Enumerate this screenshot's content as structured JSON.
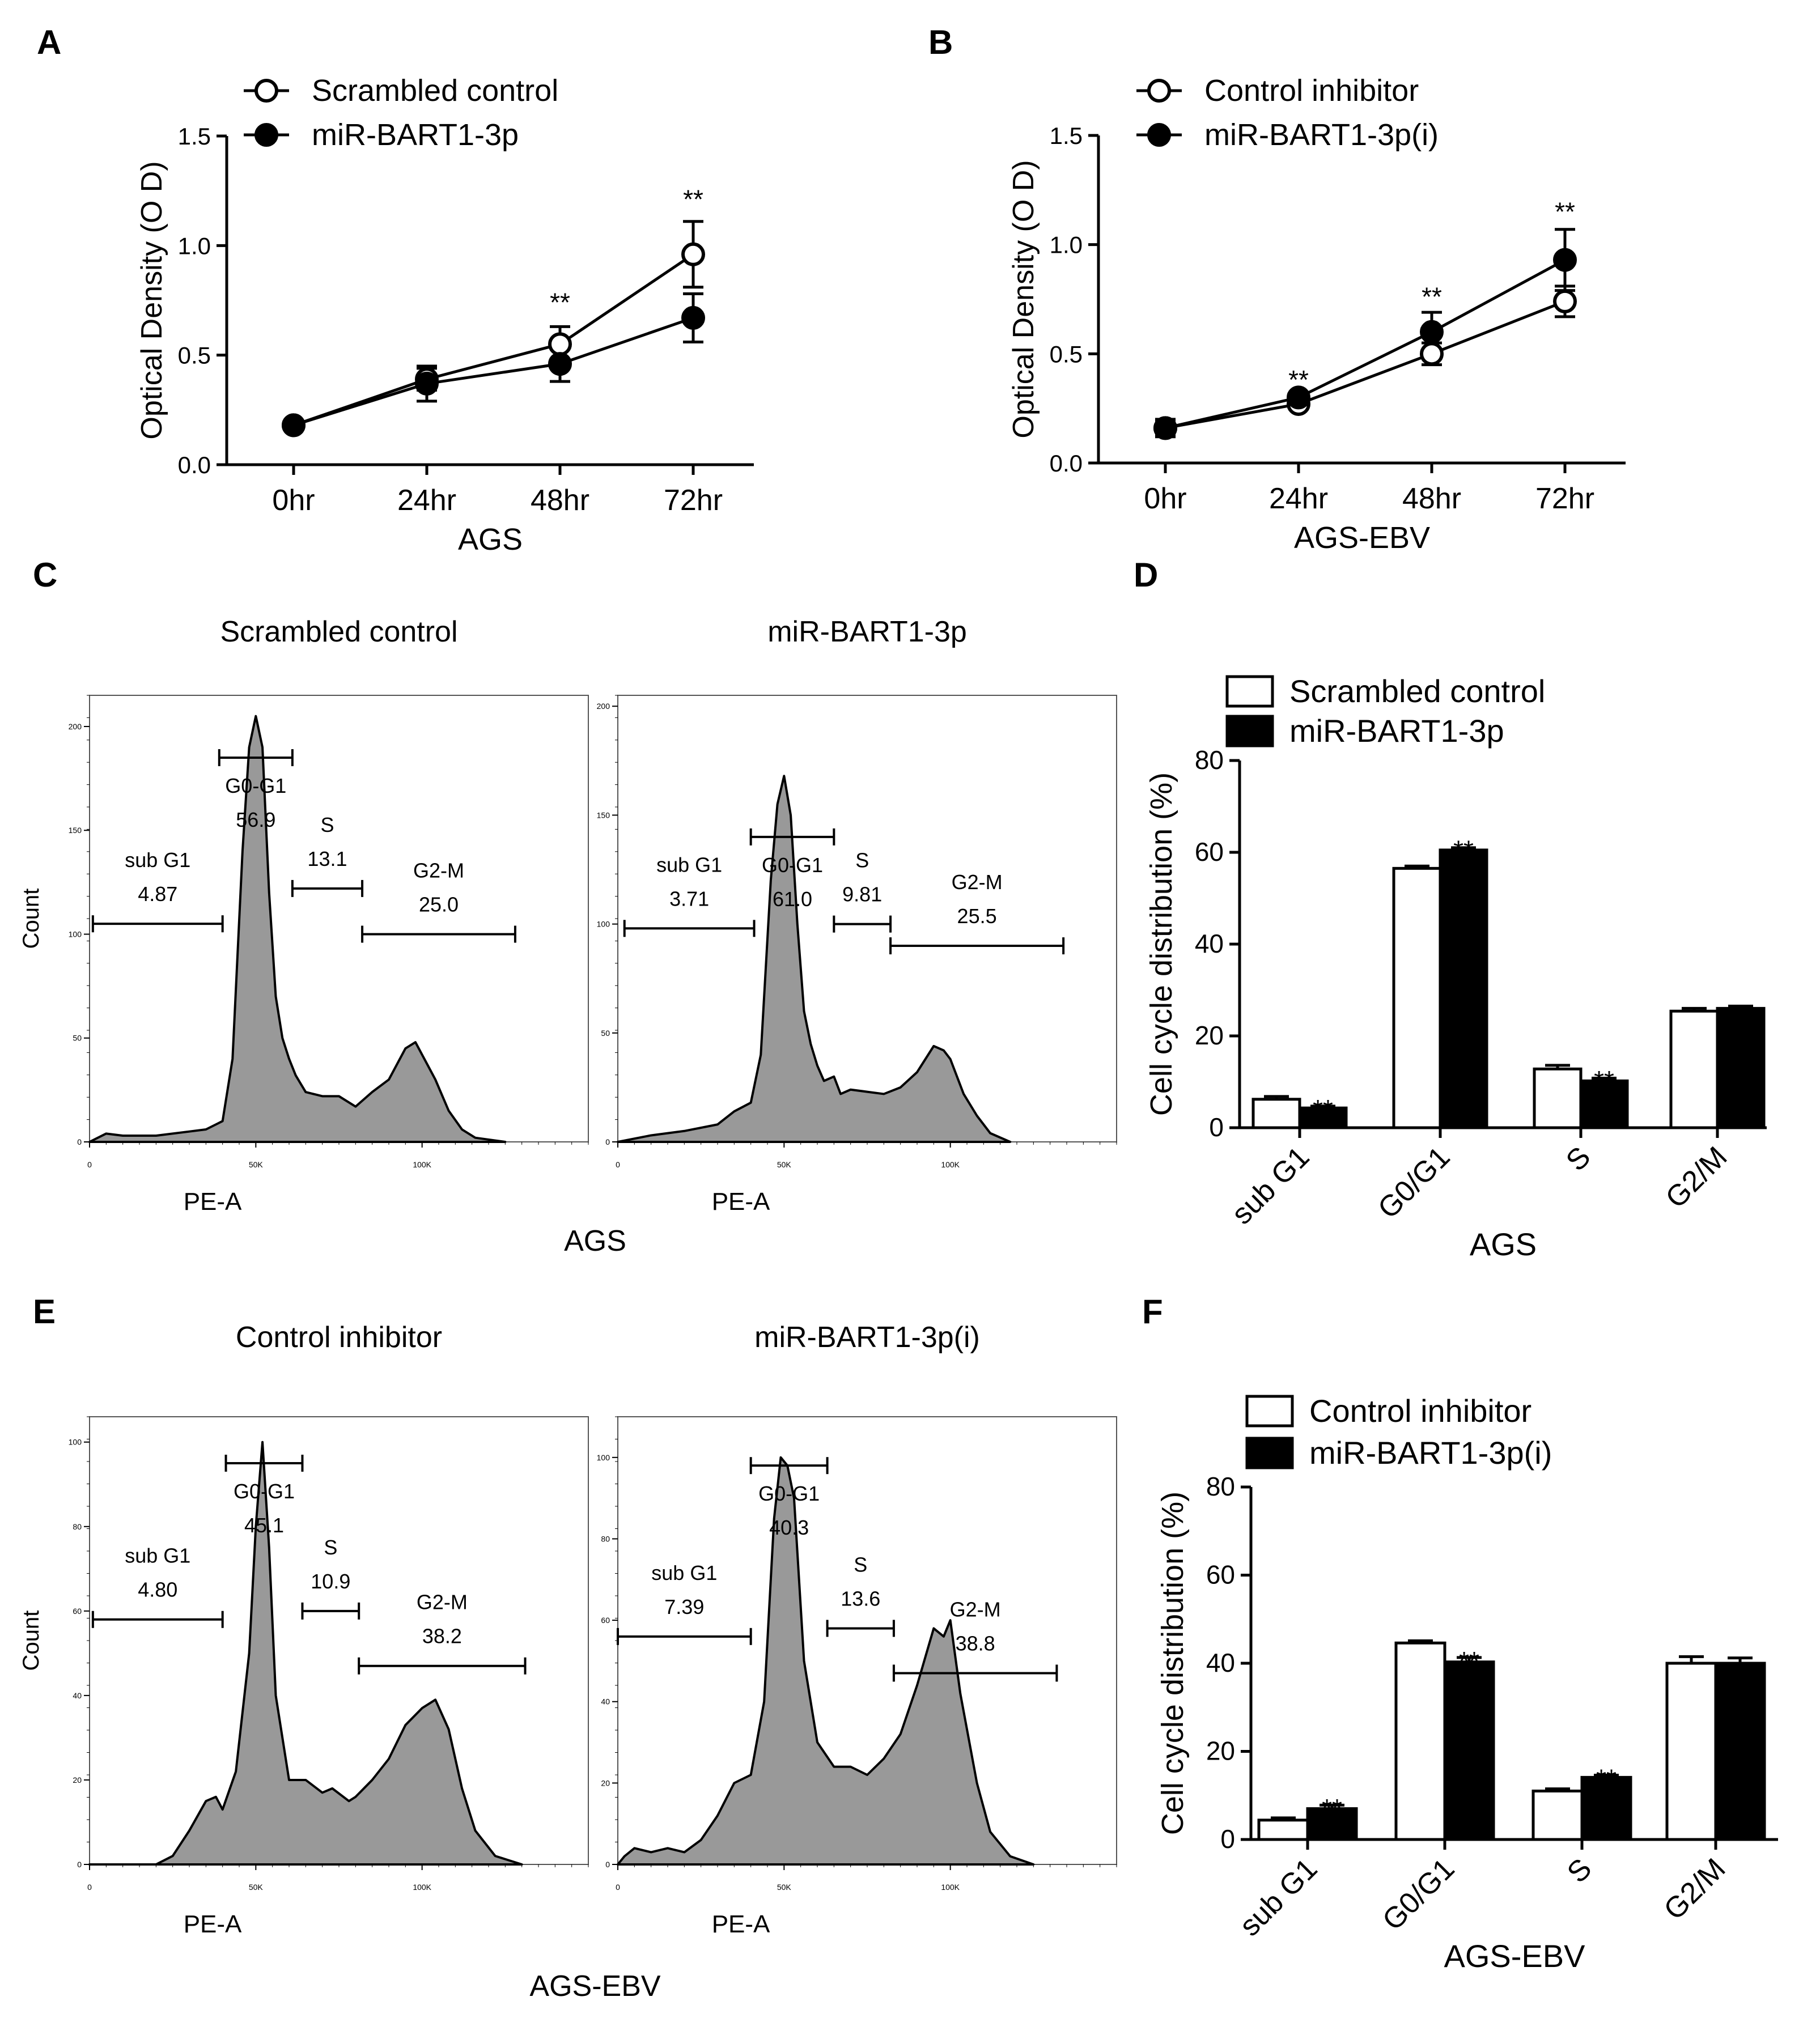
{
  "panel_labels": {
    "A": "A",
    "B": "B",
    "C": "C",
    "D": "D",
    "E": "E",
    "F": "F"
  },
  "chart_data": [
    {
      "id": "A",
      "type": "line",
      "title": "",
      "xlabel": "AGS",
      "ylabel": "Optical Density (O D)",
      "categories": [
        "0hr",
        "24hr",
        "48hr",
        "72hr"
      ],
      "ylim": [
        0,
        1.5
      ],
      "yticks": [
        "0.0",
        "0.5",
        "1.0",
        "1.5"
      ],
      "ytick_values": [
        0,
        0.5,
        1.0,
        1.5
      ],
      "series": [
        {
          "name": "Scrambled control",
          "marker": "open",
          "values": [
            0.18,
            0.39,
            0.55,
            0.96
          ],
          "errors": [
            0.02,
            0.05,
            0.08,
            0.15
          ]
        },
        {
          "name": "miR-BART1-3p",
          "marker": "filled",
          "values": [
            0.18,
            0.37,
            0.46,
            0.67
          ],
          "errors": [
            0.02,
            0.08,
            0.08,
            0.11
          ]
        }
      ],
      "annotations": [
        {
          "category_index": 2,
          "text": "**",
          "y": 0.7
        },
        {
          "category_index": 3,
          "text": "**",
          "y": 1.17
        }
      ]
    },
    {
      "id": "B",
      "type": "line",
      "title": "",
      "xlabel": "AGS-EBV",
      "ylabel": "Optical Density (O D)",
      "categories": [
        "0hr",
        "24hr",
        "48hr",
        "72hr"
      ],
      "ylim": [
        0,
        1.5
      ],
      "yticks": [
        "0.0",
        "0.5",
        "1.0",
        "1.5"
      ],
      "ytick_values": [
        0,
        0.5,
        1.0,
        1.5
      ],
      "series": [
        {
          "name": "Control inhibitor",
          "marker": "open",
          "values": [
            0.16,
            0.27,
            0.5,
            0.74
          ],
          "errors": [
            0.03,
            0.02,
            0.05,
            0.07
          ]
        },
        {
          "name": "miR-BART1-3p(i)",
          "marker": "filled",
          "values": [
            0.16,
            0.3,
            0.6,
            0.93
          ],
          "errors": [
            0.04,
            0.02,
            0.09,
            0.14
          ]
        }
      ],
      "annotations": [
        {
          "category_index": 1,
          "text": "**",
          "y": 0.34
        },
        {
          "category_index": 2,
          "text": "**",
          "y": 0.72
        },
        {
          "category_index": 3,
          "text": "**",
          "y": 1.11
        }
      ]
    },
    {
      "id": "D",
      "type": "bar",
      "xlabel": "AGS",
      "ylabel": "Cell cycle distribution (%)",
      "categories": [
        "sub G1",
        "G0/G1",
        "S",
        "G2/M"
      ],
      "ylim": [
        0,
        80
      ],
      "yticks": [
        "0",
        "20",
        "40",
        "60",
        "80"
      ],
      "ytick_values": [
        0,
        20,
        40,
        60,
        80
      ],
      "series": [
        {
          "name": "Scrambled control",
          "fill": "open",
          "values": [
            6.2,
            56.5,
            12.8,
            25.4
          ],
          "errors": [
            0.6,
            0.5,
            0.8,
            0.6
          ]
        },
        {
          "name": "miR-BART1-3p",
          "fill": "filled",
          "values": [
            4.3,
            60.5,
            10.2,
            26.0
          ],
          "errors": [
            0.4,
            0.5,
            0.6,
            0.5
          ]
        }
      ],
      "annotations": [
        {
          "category_index": 0,
          "text": "**",
          "y": 5.8
        },
        {
          "category_index": 1,
          "text": "**",
          "y": 62.3
        },
        {
          "category_index": 2,
          "text": "**",
          "y": 12.1
        }
      ]
    },
    {
      "id": "F",
      "type": "bar",
      "xlabel": "AGS-EBV",
      "ylabel": "Cell cycle distribution (%)",
      "categories": [
        "sub G1",
        "G0/G1",
        "S",
        "G2/M"
      ],
      "ylim": [
        0,
        80
      ],
      "yticks": [
        "0",
        "20",
        "40",
        "60",
        "80"
      ],
      "ytick_values": [
        0,
        20,
        40,
        60,
        80
      ],
      "series": [
        {
          "name": "Control inhibitor",
          "fill": "open",
          "values": [
            4.4,
            44.6,
            11.0,
            40.0
          ],
          "errors": [
            0.5,
            0.5,
            0.5,
            1.5
          ]
        },
        {
          "name": "miR-BART1-3p(i)",
          "fill": "filled",
          "values": [
            7.0,
            40.3,
            14.1,
            40.0
          ],
          "errors": [
            0.8,
            1.0,
            0.5,
            1.2
          ]
        }
      ],
      "annotations": [
        {
          "category_index": 0,
          "text": "**",
          "y": 8.9
        },
        {
          "category_index": 1,
          "text": "**",
          "y": 42.3
        },
        {
          "category_index": 2,
          "text": "**",
          "y": 15.6
        }
      ]
    },
    {
      "id": "C1",
      "type": "area",
      "title": "Scrambled control",
      "xlabel": "PE-A",
      "ylabel": "Count",
      "xticks": [
        "0",
        "50K",
        "100K"
      ],
      "xtick_values": [
        0,
        50000,
        100000
      ],
      "xlim": [
        0,
        150000
      ],
      "yticks": [
        "0",
        "50",
        "100",
        "150",
        "200"
      ],
      "ytick_values": [
        0,
        50,
        100,
        150,
        200
      ],
      "ylim": [
        0,
        215
      ],
      "peak_color": "#999999",
      "histogram": [
        [
          0,
          0
        ],
        [
          5000,
          4
        ],
        [
          10000,
          3
        ],
        [
          20000,
          3
        ],
        [
          30000,
          5
        ],
        [
          35000,
          6
        ],
        [
          40000,
          10
        ],
        [
          43000,
          40
        ],
        [
          46000,
          140
        ],
        [
          48000,
          190
        ],
        [
          50000,
          205
        ],
        [
          52000,
          190
        ],
        [
          54000,
          120
        ],
        [
          56000,
          70
        ],
        [
          58000,
          50
        ],
        [
          60000,
          40
        ],
        [
          62000,
          32
        ],
        [
          65000,
          24
        ],
        [
          70000,
          22
        ],
        [
          75000,
          22
        ],
        [
          80000,
          17
        ],
        [
          85000,
          24
        ],
        [
          90000,
          30
        ],
        [
          95000,
          45
        ],
        [
          98000,
          48
        ],
        [
          100000,
          42
        ],
        [
          104000,
          30
        ],
        [
          108000,
          15
        ],
        [
          112000,
          6
        ],
        [
          116000,
          2
        ],
        [
          125000,
          0
        ]
      ],
      "gates": [
        {
          "label": "sub G1",
          "value": "4.87",
          "x0": 1000,
          "x1": 40000,
          "y": 105
        },
        {
          "label": "G0-G1",
          "value": "56.9",
          "x0": 39000,
          "x1": 61000,
          "y": 185
        },
        {
          "label": "S",
          "value": "13.1",
          "x0": 61000,
          "x1": 82000,
          "y": 122
        },
        {
          "label": "G2-M",
          "value": "25.0",
          "x0": 82000,
          "x1": 128000,
          "y": 100
        }
      ]
    },
    {
      "id": "C2",
      "type": "area",
      "title": "miR-BART1-3p",
      "xlabel": "PE-A",
      "ylabel": "",
      "xticks": [
        "0",
        "50K",
        "100K"
      ],
      "xtick_values": [
        0,
        50000,
        100000
      ],
      "xlim": [
        0,
        150000
      ],
      "yticks": [
        "0",
        "50",
        "100",
        "150",
        "200"
      ],
      "ytick_values": [
        0,
        50,
        100,
        150,
        200
      ],
      "ylim": [
        0,
        205
      ],
      "peak_color": "#999999",
      "histogram": [
        [
          0,
          0
        ],
        [
          10000,
          3
        ],
        [
          20000,
          5
        ],
        [
          30000,
          8
        ],
        [
          35000,
          14
        ],
        [
          40000,
          18
        ],
        [
          43000,
          40
        ],
        [
          46000,
          120
        ],
        [
          48000,
          155
        ],
        [
          50000,
          168
        ],
        [
          52000,
          150
        ],
        [
          54000,
          100
        ],
        [
          56000,
          60
        ],
        [
          58000,
          45
        ],
        [
          60000,
          35
        ],
        [
          62000,
          28
        ],
        [
          65000,
          30
        ],
        [
          67000,
          22
        ],
        [
          70000,
          24
        ],
        [
          75000,
          23
        ],
        [
          80000,
          22
        ],
        [
          85000,
          25
        ],
        [
          90000,
          32
        ],
        [
          95000,
          44
        ],
        [
          98000,
          42
        ],
        [
          100000,
          38
        ],
        [
          104000,
          22
        ],
        [
          108000,
          12
        ],
        [
          112000,
          4
        ],
        [
          118000,
          0
        ]
      ],
      "gates": [
        {
          "label": "sub G1",
          "value": "3.71",
          "x0": 2000,
          "x1": 41000,
          "y": 98
        },
        {
          "label": "G0-G1",
          "value": "61.0",
          "x0": 40000,
          "x1": 65000,
          "y": 140
        },
        {
          "label": "S",
          "value": "9.81",
          "x0": 65000,
          "x1": 82000,
          "y": 100
        },
        {
          "label": "G2-M",
          "value": "25.5",
          "x0": 82000,
          "x1": 134000,
          "y": 90
        }
      ]
    },
    {
      "id": "E1",
      "type": "area",
      "title": "Control inhibitor",
      "xlabel": "PE-A",
      "ylabel": "Count",
      "xticks": [
        "0",
        "50K",
        "100K"
      ],
      "xtick_values": [
        0,
        50000,
        100000
      ],
      "xlim": [
        0,
        150000
      ],
      "yticks": [
        "0",
        "20",
        "40",
        "60",
        "80",
        "100"
      ],
      "ytick_values": [
        0,
        20,
        40,
        60,
        80,
        100
      ],
      "ylim": [
        0,
        106
      ],
      "peak_color": "#999999",
      "histogram": [
        [
          0,
          0
        ],
        [
          20000,
          0
        ],
        [
          25000,
          2
        ],
        [
          30000,
          8
        ],
        [
          35000,
          15
        ],
        [
          38000,
          16
        ],
        [
          40000,
          13
        ],
        [
          44000,
          22
        ],
        [
          48000,
          50
        ],
        [
          50000,
          80
        ],
        [
          52000,
          100
        ],
        [
          54000,
          75
        ],
        [
          56000,
          40
        ],
        [
          60000,
          20
        ],
        [
          65000,
          20
        ],
        [
          70000,
          17
        ],
        [
          73000,
          18
        ],
        [
          78000,
          15
        ],
        [
          80000,
          16
        ],
        [
          85000,
          20
        ],
        [
          90000,
          25
        ],
        [
          95000,
          33
        ],
        [
          100000,
          37
        ],
        [
          104000,
          39
        ],
        [
          108000,
          32
        ],
        [
          112000,
          18
        ],
        [
          116000,
          8
        ],
        [
          122000,
          2
        ],
        [
          130000,
          0
        ]
      ],
      "gates": [
        {
          "label": "sub G1",
          "value": "4.80",
          "x0": 1000,
          "x1": 40000,
          "y": 58
        },
        {
          "label": "G0-G1",
          "value": "45.1",
          "x0": 41000,
          "x1": 64000,
          "y": 95
        },
        {
          "label": "S",
          "value": "10.9",
          "x0": 64000,
          "x1": 81000,
          "y": 60
        },
        {
          "label": "G2-M",
          "value": "38.2",
          "x0": 81000,
          "x1": 131000,
          "y": 47
        }
      ]
    },
    {
      "id": "E2",
      "type": "area",
      "title": "miR-BART1-3p(i)",
      "xlabel": "PE-A",
      "ylabel": "",
      "xticks": [
        "0",
        "50K",
        "100K"
      ],
      "xtick_values": [
        0,
        50000,
        100000
      ],
      "xlim": [
        0,
        150000
      ],
      "yticks": [
        "0",
        "20",
        "40",
        "60",
        "80",
        "100"
      ],
      "ytick_values": [
        0,
        20,
        40,
        60,
        80,
        100
      ],
      "ylim": [
        0,
        110
      ],
      "peak_color": "#999999",
      "histogram": [
        [
          0,
          0
        ],
        [
          2000,
          2
        ],
        [
          5000,
          4
        ],
        [
          10000,
          3
        ],
        [
          15000,
          4
        ],
        [
          20000,
          3
        ],
        [
          25000,
          6
        ],
        [
          30000,
          12
        ],
        [
          35000,
          20
        ],
        [
          40000,
          22
        ],
        [
          44000,
          40
        ],
        [
          47000,
          85
        ],
        [
          49000,
          100
        ],
        [
          51000,
          98
        ],
        [
          53000,
          90
        ],
        [
          56000,
          50
        ],
        [
          60000,
          30
        ],
        [
          65000,
          24
        ],
        [
          70000,
          24
        ],
        [
          75000,
          22
        ],
        [
          80000,
          26
        ],
        [
          85000,
          32
        ],
        [
          90000,
          44
        ],
        [
          95000,
          58
        ],
        [
          98000,
          56
        ],
        [
          100000,
          60
        ],
        [
          103000,
          42
        ],
        [
          108000,
          20
        ],
        [
          112000,
          8
        ],
        [
          118000,
          2
        ],
        [
          125000,
          0
        ]
      ],
      "gates": [
        {
          "label": "sub G1",
          "value": "7.39",
          "x0": 0,
          "x1": 40000,
          "y": 56
        },
        {
          "label": "G0-G1",
          "value": "40.3",
          "x0": 40000,
          "x1": 63000,
          "y": 98
        },
        {
          "label": "S",
          "value": "13.6",
          "x0": 63000,
          "x1": 83000,
          "y": 58
        },
        {
          "label": "G2-M",
          "value": "38.8",
          "x0": 83000,
          "x1": 132000,
          "y": 47
        }
      ]
    }
  ],
  "flow_captions": {
    "C": "AGS",
    "E": "AGS-EBV"
  }
}
